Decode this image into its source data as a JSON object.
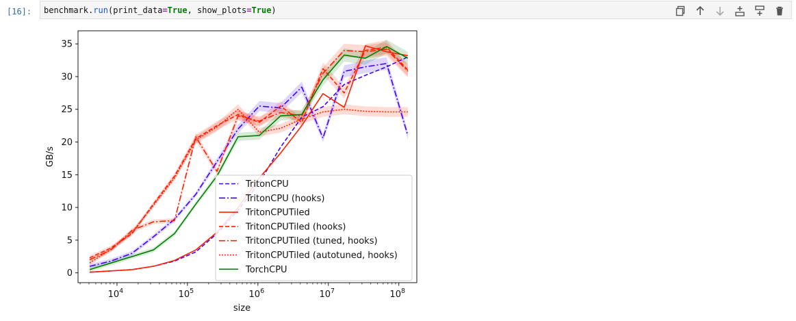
{
  "cell": {
    "prompt": "[16]:",
    "code": {
      "object": "benchmark",
      "dot": ".",
      "method": "run",
      "open": "(",
      "arg1_name": "print_data",
      "eq": "=",
      "arg1_value": "True",
      "comma": ", ",
      "arg2_name": "show_plots",
      "arg2_value": "True",
      "close": ")"
    }
  },
  "toolbar": {
    "buttons": [
      {
        "icon": "copy-icon"
      },
      {
        "icon": "arrow-up-icon"
      },
      {
        "icon": "arrow-down-icon"
      },
      {
        "icon": "insert-above-icon"
      },
      {
        "icon": "insert-below-icon"
      },
      {
        "icon": "delete-icon"
      }
    ]
  },
  "chart_data": {
    "type": "line",
    "xlabel": "size",
    "ylabel": "GB/s",
    "xscale": "log",
    "xlim": [
      2800,
      180000000
    ],
    "ylim": [
      -1.5,
      37
    ],
    "xticks": [
      {
        "value": 10000,
        "base": "10",
        "exp": "4"
      },
      {
        "value": 100000,
        "base": "10",
        "exp": "5"
      },
      {
        "value": 1000000,
        "base": "10",
        "exp": "6"
      },
      {
        "value": 10000000,
        "base": "10",
        "exp": "7"
      },
      {
        "value": 100000000,
        "base": "10",
        "exp": "8"
      }
    ],
    "yticks": [
      0,
      5,
      10,
      15,
      20,
      25,
      30,
      35
    ],
    "legend_position": "lower-right",
    "x": [
      4096,
      8192,
      16384,
      32768,
      65536,
      131072,
      262144,
      524288,
      1048576,
      2097152,
      4194304,
      8388608,
      16777216,
      33554432,
      67108864,
      134217728
    ],
    "series": [
      {
        "name": "TritonCPU",
        "color": "#3b00ff",
        "dash": "6,3",
        "values": [
          0.1,
          0.3,
          0.5,
          1.0,
          1.8,
          3.2,
          6.0,
          9.6,
          13.8,
          19.2,
          23.8,
          25.4,
          28.8,
          30.2,
          31.5,
          33.0
        ]
      },
      {
        "name": "TritonCPU (hooks)",
        "color": "#3b00ff",
        "dash": "9,3,2,3",
        "values": [
          1.0,
          1.8,
          3.0,
          5.5,
          8.2,
          12.0,
          17.0,
          22.0,
          25.5,
          25.2,
          28.4,
          20.6,
          30.8,
          31.5,
          32.0,
          21.0
        ]
      },
      {
        "name": "TritonCPUTiled",
        "color": "#ff2000",
        "dash": "",
        "values": [
          0.1,
          0.3,
          0.5,
          1.0,
          1.9,
          3.5,
          6.2,
          10.0,
          14.5,
          18.3,
          22.5,
          27.4,
          25.3,
          34.7,
          33.8,
          33.2
        ]
      },
      {
        "name": "TritonCPUTiled (hooks)",
        "color": "#ff2000",
        "dash": "6,3",
        "values": [
          2.3,
          3.8,
          6.0,
          10.5,
          14.8,
          20.5,
          22.5,
          24.2,
          23.0,
          25.5,
          23.0,
          31.2,
          27.5,
          34.0,
          34.5,
          31.0
        ]
      },
      {
        "name": "TritonCPUTiled (tuned, hooks)",
        "color": "#ff2000",
        "dash": "9,3,2,3",
        "values": [
          2.0,
          3.5,
          6.5,
          7.8,
          8.0,
          20.8,
          15.5,
          24.0,
          23.2,
          24.5,
          24.0,
          30.5,
          34.0,
          33.8,
          34.2,
          30.8
        ]
      },
      {
        "name": "TritonCPUTiled (autotuned, hooks)",
        "color": "#ff2000",
        "dash": "2,2",
        "values": [
          1.5,
          3.6,
          6.2,
          10.3,
          14.5,
          20.3,
          22.3,
          25.0,
          21.5,
          22.1,
          23.5,
          24.6,
          25.0,
          24.7,
          24.6,
          24.6
        ]
      },
      {
        "name": "TorchCPU",
        "color": "#007f00",
        "dash": "",
        "values": [
          0.5,
          1.5,
          2.5,
          3.5,
          6.0,
          10.5,
          14.8,
          20.8,
          21.0,
          24.0,
          24.2,
          29.5,
          33.3,
          32.8,
          34.6,
          32.8
        ]
      }
    ]
  }
}
